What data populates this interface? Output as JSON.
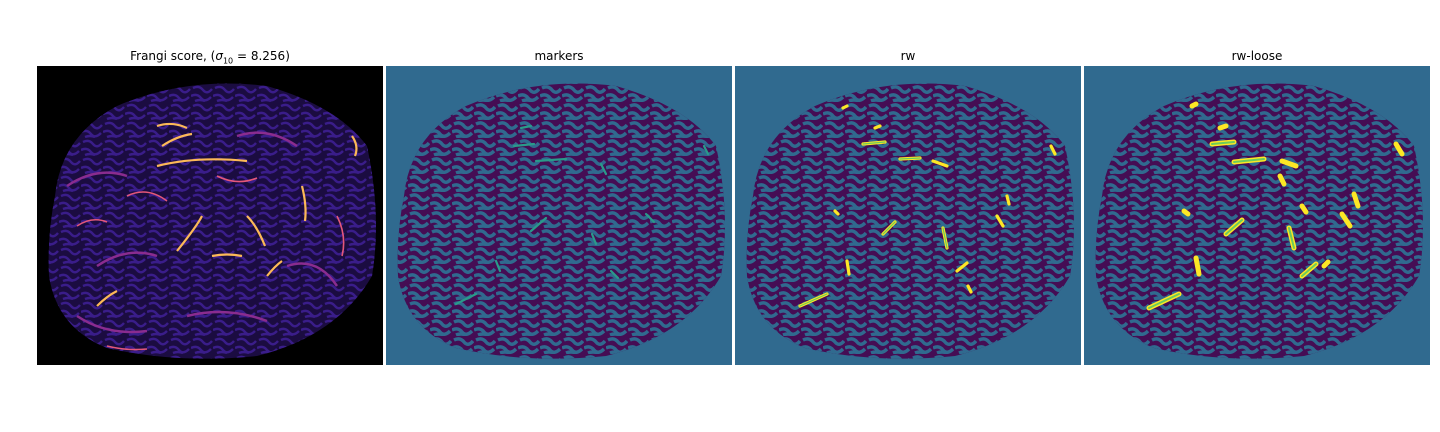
{
  "figure": {
    "panels": [
      {
        "id": "frangi",
        "title_prefix": "Frangi score, (",
        "title_sigma": "σ",
        "title_sub": "10",
        "title_suffix": " = 8.256)",
        "colormap": "magma",
        "colors": {
          "background": "#000000",
          "tissue": "#1b0c41",
          "texture": "#3a1d8a",
          "mid": "#8a2c8f",
          "high": "#e4577a",
          "peak": "#fcb957"
        }
      },
      {
        "id": "markers",
        "title": "markers",
        "colors": {
          "background": "#306a8f",
          "tissue": "#450d54",
          "marker": "#2a9a8a"
        }
      },
      {
        "id": "rw",
        "title": "rw",
        "colors": {
          "background": "#306a8f",
          "tissue": "#450d54",
          "segment": "#fde725",
          "segment_core": "#6ccc5a"
        }
      },
      {
        "id": "rw-loose",
        "title": "rw-loose",
        "colors": {
          "background": "#306a8f",
          "tissue": "#450d54",
          "segment": "#fde725",
          "segment_core": "#6ccc5a"
        }
      }
    ]
  }
}
